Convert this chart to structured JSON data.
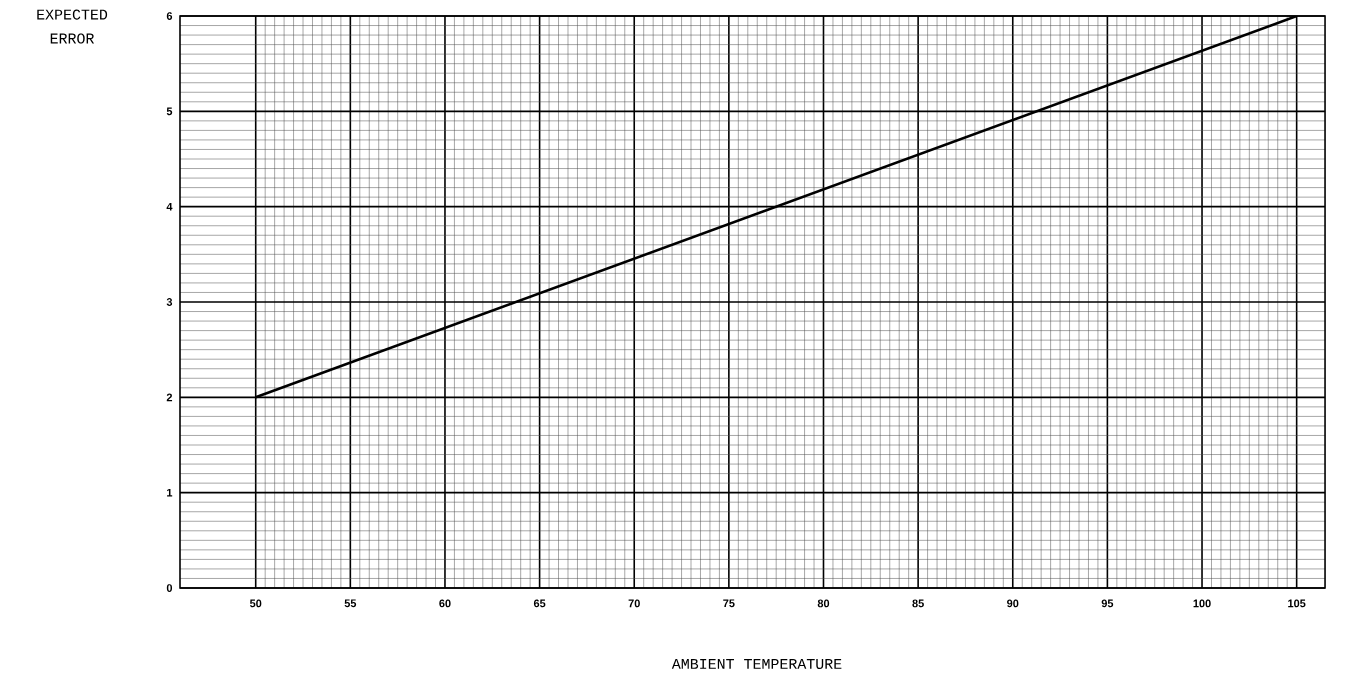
{
  "chart_data": {
    "type": "line",
    "xlabel": "AMBIENT TEMPERATURE",
    "ylabel": "EXPECTED ERROR",
    "series": [
      {
        "color": "#000000",
        "x": [
          50,
          105
        ],
        "values": [
          2,
          6
        ]
      }
    ],
    "xlim": [
      46,
      106.5
    ],
    "xticks": [
      50,
      55,
      60,
      65,
      70,
      75,
      80,
      85,
      90,
      95,
      100,
      105
    ],
    "ylim": [
      0,
      6
    ],
    "yticks": [
      0,
      1,
      2,
      3,
      4,
      5,
      6
    ],
    "grid": true,
    "marker": "none",
    "line_style": "solid"
  }
}
